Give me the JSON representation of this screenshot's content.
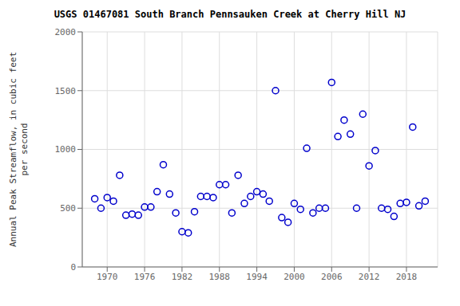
{
  "chart_data": {
    "type": "scatter",
    "title": "USGS 01467081 South Branch Pennsauken Creek at Cherry Hill NJ",
    "ylabel": "Annual Peak Streamflow, in cubic feet\nper second",
    "x": [
      1968,
      1969,
      1970,
      1971,
      1972,
      1973,
      1974,
      1975,
      1976,
      1977,
      1978,
      1979,
      1980,
      1981,
      1982,
      1983,
      1984,
      1985,
      1986,
      1987,
      1988,
      1989,
      1990,
      1991,
      1992,
      1993,
      1994,
      1995,
      1996,
      1997,
      1998,
      1999,
      2000,
      2001,
      2002,
      2003,
      2004,
      2005,
      2006,
      2007,
      2008,
      2009,
      2010,
      2011,
      2012,
      2013,
      2014,
      2015,
      2016,
      2017,
      2018,
      2019,
      2020,
      2021
    ],
    "values": [
      580,
      500,
      590,
      560,
      780,
      440,
      450,
      440,
      510,
      510,
      640,
      870,
      620,
      460,
      300,
      290,
      470,
      600,
      600,
      590,
      700,
      700,
      460,
      780,
      540,
      600,
      640,
      620,
      560,
      1500,
      420,
      380,
      540,
      490,
      1010,
      460,
      500,
      500,
      1570,
      1110,
      1250,
      1130,
      500,
      1300,
      860,
      990,
      500,
      490,
      430,
      540,
      550,
      1190,
      520,
      560
    ],
    "xlim": [
      1966,
      2023
    ],
    "ylim": [
      0,
      2000
    ],
    "xticks": [
      1970,
      1976,
      1982,
      1988,
      1994,
      2000,
      2006,
      2012,
      2018
    ],
    "yticks": [
      0,
      500,
      1000,
      1500,
      2000
    ],
    "color": "#0000cc",
    "marker": "circle",
    "grid": true
  }
}
